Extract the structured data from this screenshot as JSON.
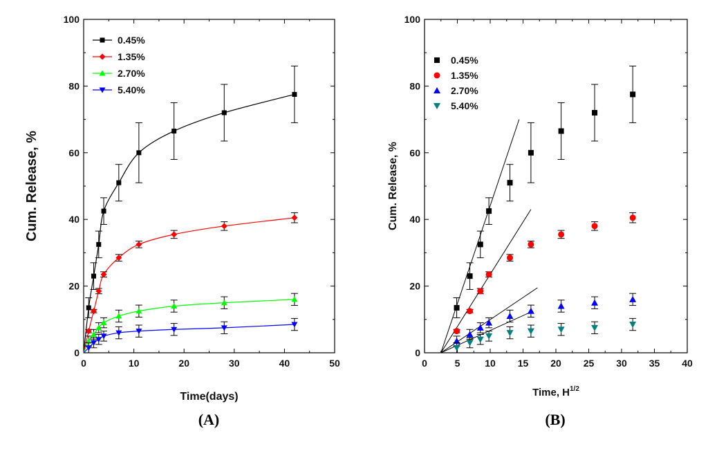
{
  "chart_data": [
    {
      "id": "A",
      "type": "line",
      "panel_label": "(A)",
      "title": "",
      "xlabel": "Time(days)",
      "ylabel": "Cum. Release, %",
      "xlim": [
        0,
        50
      ],
      "ylim": [
        0,
        100
      ],
      "xticks": [
        0,
        10,
        20,
        30,
        40,
        50
      ],
      "yticks": [
        0,
        20,
        40,
        60,
        80,
        100
      ],
      "x_tick_labels": [
        "0",
        "10",
        "20",
        "30",
        "40",
        "50"
      ],
      "y_tick_labels": [
        "0",
        "20",
        "40",
        "60",
        "80",
        "100"
      ],
      "grid": false,
      "legend_position": "top-left",
      "x": [
        1,
        2,
        3,
        4,
        7,
        11,
        18,
        28,
        42
      ],
      "series": [
        {
          "name": "0.45%",
          "color": "#000000",
          "marker": "square",
          "values": [
            13.5,
            23,
            32.5,
            42.5,
            51,
            60,
            66.5,
            72,
            77.5
          ],
          "errors": [
            3,
            4,
            4,
            4,
            5.5,
            9,
            8.5,
            8.5,
            8.5
          ]
        },
        {
          "name": "1.35%",
          "color": "#ff0000",
          "marker": "diamond",
          "values": [
            6.5,
            12.5,
            18.5,
            23.5,
            28.5,
            32.5,
            35.5,
            38,
            40.5
          ],
          "errors": [
            0.5,
            0.5,
            0.8,
            0.8,
            1,
            1,
            1.2,
            1.3,
            1.5
          ]
        },
        {
          "name": "2.70%",
          "color": "#00ff00",
          "marker": "triangle-up",
          "values": [
            3.5,
            5.5,
            7.5,
            9,
            11,
            12.5,
            14,
            15,
            16
          ],
          "errors": [
            1.5,
            1.5,
            1.5,
            1.5,
            1.8,
            1.8,
            1.8,
            1.8,
            1.8
          ]
        },
        {
          "name": "5.40%",
          "color": "#0000ff",
          "marker": "triangle-down",
          "values": [
            1.5,
            3,
            4,
            5,
            6,
            6.5,
            7,
            7.5,
            8.5
          ],
          "errors": [
            1.5,
            1.5,
            1.5,
            1.5,
            1.8,
            1.8,
            1.8,
            1.8,
            1.8
          ]
        }
      ]
    },
    {
      "id": "B",
      "type": "scatter",
      "panel_label": "(B)",
      "title": "",
      "xlabel": "Time, H",
      "xlabel_superscript": "1/2",
      "ylabel": "Cum. Release, %",
      "xlim": [
        0,
        40
      ],
      "ylim": [
        0,
        100
      ],
      "xticks": [
        0,
        5,
        10,
        15,
        20,
        25,
        30,
        35,
        40
      ],
      "yticks": [
        0,
        20,
        40,
        60,
        80,
        100
      ],
      "x_tick_labels": [
        "0",
        "5",
        "10",
        "15",
        "20",
        "25",
        "30",
        "35",
        "40"
      ],
      "y_tick_labels": [
        "0",
        "20",
        "40",
        "60",
        "80",
        "100"
      ],
      "grid": false,
      "legend_position": "top-left",
      "x": [
        4.9,
        6.9,
        8.5,
        9.8,
        13,
        16.2,
        20.8,
        25.9,
        31.7
      ],
      "series": [
        {
          "name": "0.45%",
          "color": "#000000",
          "marker": "square",
          "values": [
            13.5,
            23,
            32.5,
            42.5,
            51,
            60,
            66.5,
            72,
            77.5
          ],
          "errors": [
            3,
            4,
            4,
            4,
            5.5,
            9,
            8.5,
            8.5,
            8.5
          ],
          "fit_line": {
            "x": [
              2.5,
              14.4
            ],
            "y": [
              0,
              70
            ]
          }
        },
        {
          "name": "1.35%",
          "color": "#ff0000",
          "marker": "circle",
          "values": [
            6.5,
            12.5,
            18.5,
            23.5,
            28.5,
            32.5,
            35.5,
            38,
            40.5
          ],
          "errors": [
            0.5,
            0.5,
            0.8,
            0.8,
            1,
            1,
            1.2,
            1.3,
            1.5
          ],
          "fit_line": {
            "x": [
              2.5,
              16.2
            ],
            "y": [
              0,
              43
            ]
          }
        },
        {
          "name": "2.70%",
          "color": "#0000ff",
          "marker": "triangle-up",
          "values": [
            3.5,
            5.5,
            7.5,
            9,
            11,
            12.5,
            14,
            15,
            16
          ],
          "errors": [
            1.5,
            1.5,
            1.5,
            1.5,
            1.8,
            1.8,
            1.8,
            1.8,
            1.8
          ],
          "fit_line": {
            "x": [
              2.5,
              17.2
            ],
            "y": [
              0,
              19.5
            ]
          }
        },
        {
          "name": "5.40%",
          "color": "#008080",
          "marker": "triangle-down",
          "values": [
            1.5,
            3,
            4,
            5,
            6,
            6.5,
            7,
            7.5,
            8.5
          ],
          "errors": [
            1.5,
            1.5,
            1.5,
            1.5,
            1.8,
            1.8,
            1.8,
            1.8,
            1.8
          ],
          "fit_line": {
            "x": [
              2.5,
              16.5
            ],
            "y": [
              0,
              12.5
            ]
          }
        }
      ]
    }
  ]
}
